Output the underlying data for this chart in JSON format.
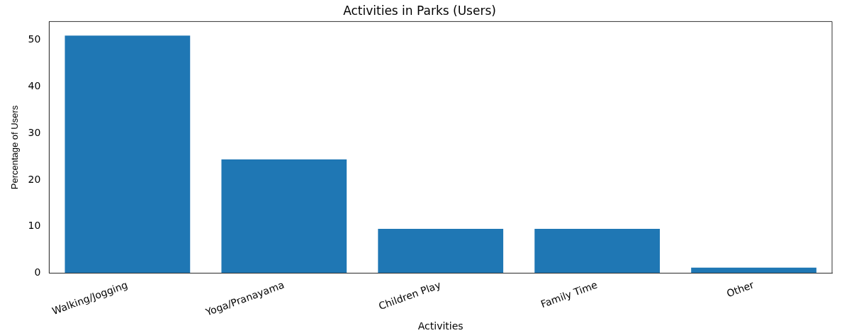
{
  "chart_data": {
    "type": "bar",
    "title": "Activities in Parks (Users)",
    "xlabel": "Activities",
    "ylabel": "Percentage of Users",
    "categories": [
      "Walking/Jogging",
      "Yoga/Pranayama",
      "Children Play",
      "Family Time",
      "Other"
    ],
    "values": [
      51,
      24.4,
      9.5,
      9.5,
      1.2
    ],
    "color": "#1f77b4",
    "ylim": [
      0,
      54
    ],
    "yticks": [
      0,
      10,
      20,
      30,
      40,
      50
    ],
    "grid": false,
    "legend": false
  }
}
